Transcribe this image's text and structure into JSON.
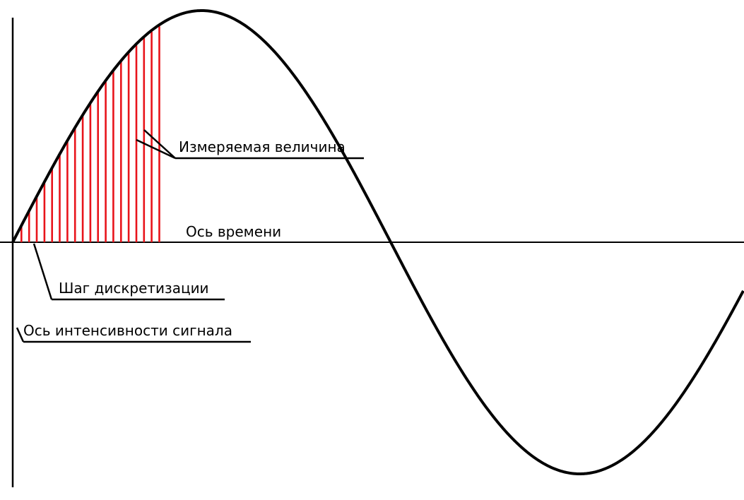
{
  "diagram": {
    "labels": {
      "measured_value": "Измеряемая величина",
      "time_axis": "Ось времени",
      "sampling_step": "Шаг дискретизации",
      "signal_axis": "Ось интенсивности сигнала"
    },
    "colors": {
      "curve": "#000000",
      "axes": "#000000",
      "samples": "#e8141b",
      "leaders": "#000000"
    },
    "waveform": {
      "type": "sine",
      "periods_shown": 1.37
    },
    "sampling": {
      "sample_count": 20,
      "phase_covered": 0.385
    }
  }
}
